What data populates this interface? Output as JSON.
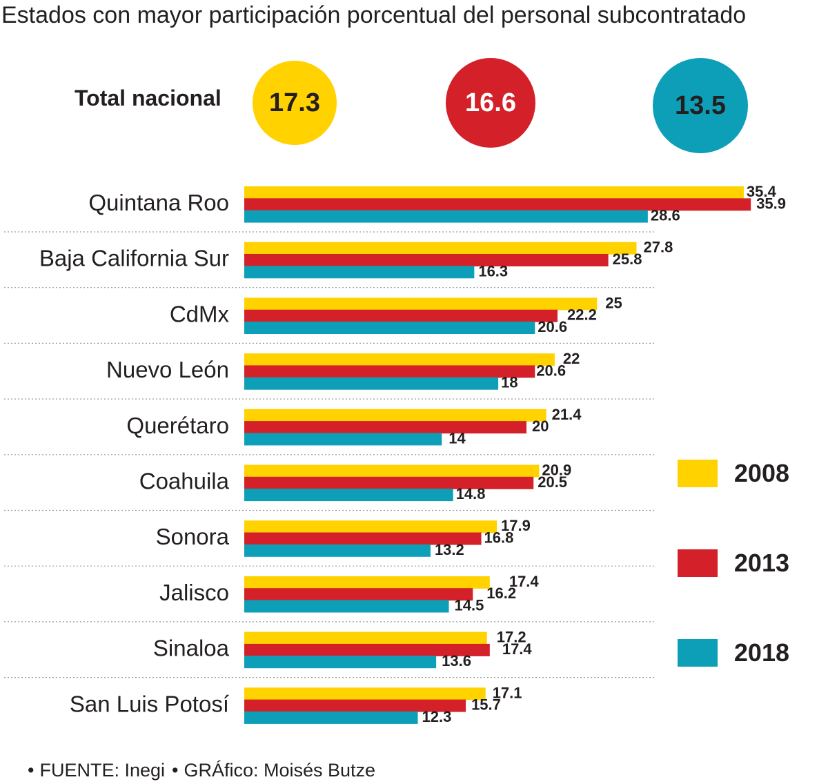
{
  "title": "Estados con mayor participación porcentual del personal subcontratado",
  "totals": {
    "label": "Total nacional",
    "items": [
      {
        "value": "17.3",
        "color": "#ffd200"
      },
      {
        "value": "16.6",
        "color": "#d42129"
      },
      {
        "value": "13.5",
        "color": "#0d9fb7"
      }
    ]
  },
  "source": {
    "fuente": "FUENTE: Inegi",
    "grafico": "GRÁfico: Moisés Butze",
    "bullet": "•"
  },
  "chart_data": {
    "type": "bar",
    "orientation": "horizontal",
    "categories": [
      "Quintana Roo",
      "Baja California Sur",
      "CdMx",
      "Nuevo León",
      "Querétaro",
      "Coahuila",
      "Sonora",
      "Jalisco",
      "Sinaloa",
      "San Luis Potosí"
    ],
    "series": [
      {
        "name": "2008",
        "color": "#ffd200",
        "values": [
          35.4,
          27.8,
          25,
          22,
          21.4,
          20.9,
          17.9,
          17.4,
          17.2,
          17.1
        ]
      },
      {
        "name": "2013",
        "color": "#d42129",
        "values": [
          35.9,
          25.8,
          22.2,
          20.6,
          20,
          20.5,
          16.8,
          16.2,
          17.4,
          15.7
        ]
      },
      {
        "name": "2018",
        "color": "#0d9fb7",
        "values": [
          28.6,
          16.3,
          20.6,
          18,
          14,
          14.8,
          13.2,
          14.5,
          13.6,
          12.3
        ]
      }
    ],
    "data_labels": [
      [
        "35.4",
        "27.8",
        "25",
        "22",
        "21.4",
        "20.9",
        "17.9",
        "17.4",
        "17.2",
        "17.1"
      ],
      [
        "35.9",
        "25.8",
        "22.2",
        "20.6",
        "20",
        "20.5",
        "16.8",
        "16.2",
        "17.4",
        "15.7"
      ],
      [
        "28.6",
        "16.3",
        "20.6",
        "18",
        "14",
        "14.8",
        "13.2",
        "14.5",
        "13.6",
        "12.3"
      ]
    ],
    "legend_position": "right",
    "grid": false
  }
}
